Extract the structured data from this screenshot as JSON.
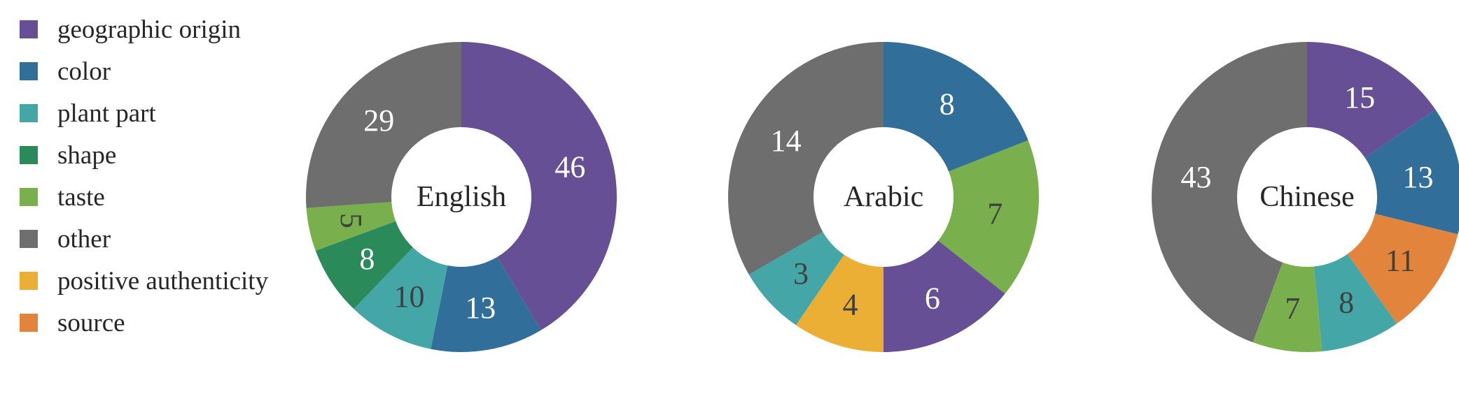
{
  "legend": [
    {
      "label": "geographic origin",
      "color": "#664f94"
    },
    {
      "label": "color",
      "color": "#316e9a"
    },
    {
      "label": "plant part",
      "color": "#45a6a8"
    },
    {
      "label": "shape",
      "color": "#2a8a5a"
    },
    {
      "label": "taste",
      "color": "#79b04d"
    },
    {
      "label": "other",
      "color": "#6e6e6e"
    },
    {
      "label": "positive authenticity",
      "color": "#ecaf35"
    },
    {
      "label": "source",
      "color": "#e2843b"
    }
  ],
  "chart_data": [
    {
      "type": "pie",
      "donut": true,
      "title": "English",
      "slices": [
        {
          "category": "geographic origin",
          "value": 46,
          "label_color": "#ffffff"
        },
        {
          "category": "color",
          "value": 13,
          "label_color": "#ffffff"
        },
        {
          "category": "plant part",
          "value": 10,
          "label_color": "#404040"
        },
        {
          "category": "shape",
          "value": 8,
          "label_color": "#ffffff"
        },
        {
          "category": "taste",
          "value": 5,
          "label_color": "#404040",
          "rotated": true
        },
        {
          "category": "other",
          "value": 29,
          "label_color": "#ffffff"
        }
      ]
    },
    {
      "type": "pie",
      "donut": true,
      "title": "Arabic",
      "slices": [
        {
          "category": "color",
          "value": 8,
          "label_color": "#ffffff"
        },
        {
          "category": "taste",
          "value": 7,
          "label_color": "#404040"
        },
        {
          "category": "geographic origin",
          "value": 6,
          "label_color": "#ffffff"
        },
        {
          "category": "positive authenticity",
          "value": 4,
          "label_color": "#404040"
        },
        {
          "category": "plant part",
          "value": 3,
          "label_color": "#404040"
        },
        {
          "category": "other",
          "value": 14,
          "label_color": "#ffffff"
        }
      ]
    },
    {
      "type": "pie",
      "donut": true,
      "title": "Chinese",
      "slices": [
        {
          "category": "geographic origin",
          "value": 15,
          "label_color": "#ffffff"
        },
        {
          "category": "color",
          "value": 13,
          "label_color": "#ffffff"
        },
        {
          "category": "source",
          "value": 11,
          "label_color": "#404040"
        },
        {
          "category": "plant part",
          "value": 8,
          "label_color": "#404040"
        },
        {
          "category": "taste",
          "value": 7,
          "label_color": "#404040"
        },
        {
          "category": "other",
          "value": 43,
          "label_color": "#ffffff"
        }
      ]
    }
  ]
}
